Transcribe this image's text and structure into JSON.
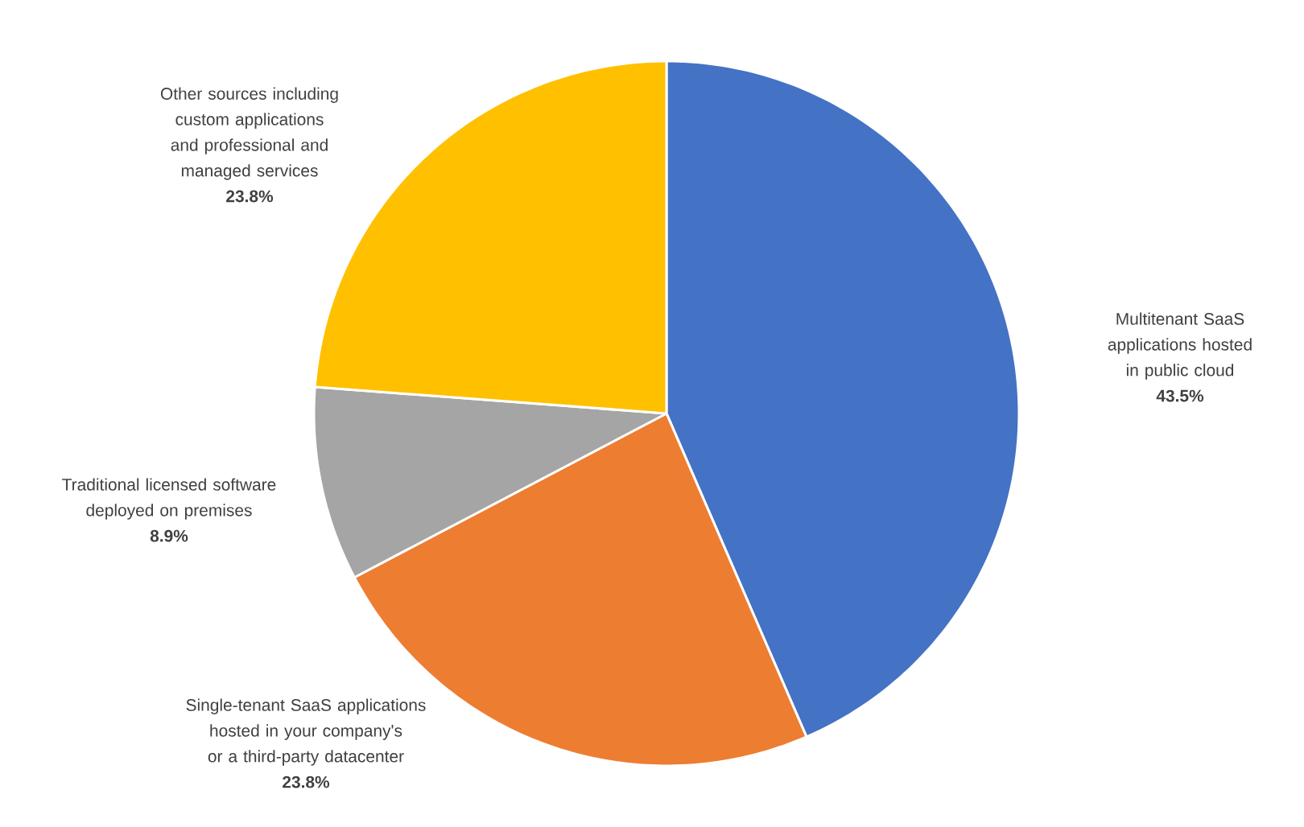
{
  "chart_data": {
    "type": "pie",
    "categories": [
      "Multitenant SaaS applications hosted in public cloud",
      "Single-tenant SaaS applications hosted in your company's or a third-party datacenter",
      "Traditional licensed software deployed on premises",
      "Other sources including custom applications and professional and managed services"
    ],
    "values": [
      43.5,
      23.8,
      8.9,
      23.8
    ],
    "value_labels": [
      "43.5%",
      "23.8%",
      "8.9%",
      "23.8%"
    ],
    "colors": [
      "#4472c4",
      "#ed7d31",
      "#a5a5a5",
      "#ffc000"
    ]
  }
}
